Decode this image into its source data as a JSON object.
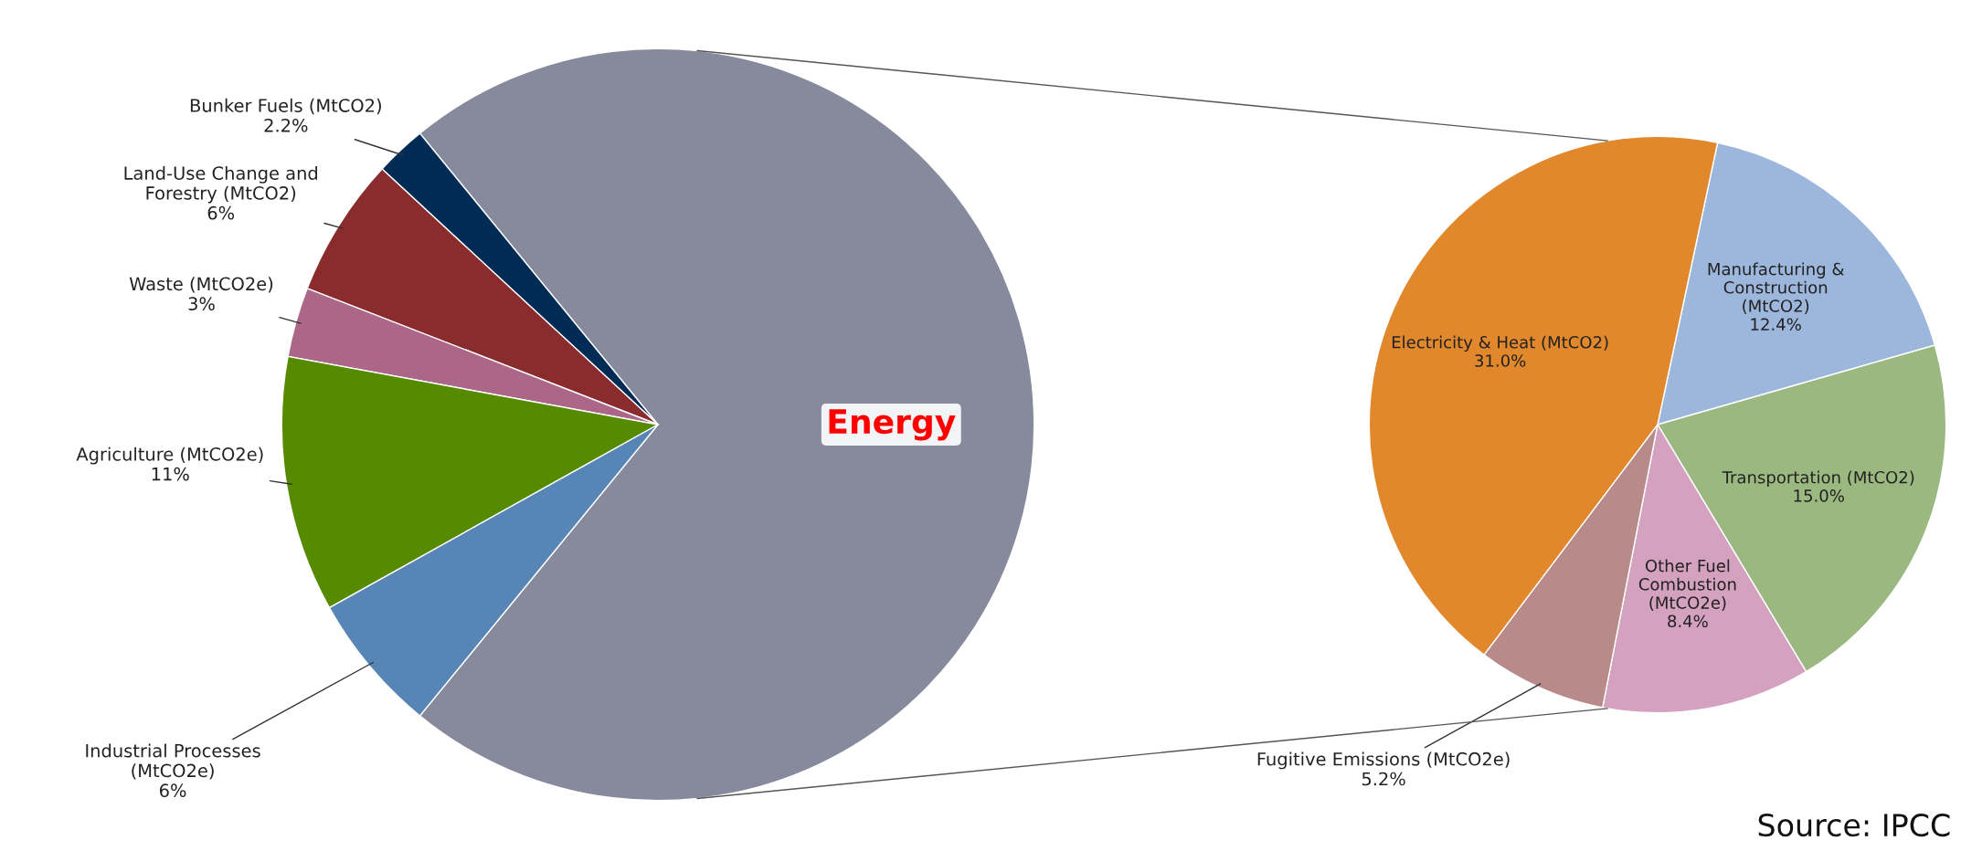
{
  "chart_data": [
    {
      "type": "pie",
      "categories": [
        "Energy",
        "Bunker Fuels (MtCO2)",
        "Land-Use Change and Forestry (MtCO2)",
        "Waste (MtCO2e)",
        "Agriculture (MtCO2e)",
        "Industrial Processes (MtCO2e)"
      ],
      "values": [
        71.8,
        2.2,
        6,
        3,
        11,
        6
      ],
      "value_labels": [
        null,
        "2.2%",
        "6%",
        "3%",
        "11%",
        "6%"
      ],
      "colors": [
        "#868a9c",
        "#002b55",
        "#8a2b2d",
        "#ab6688",
        "#568a00",
        "#5786b6"
      ]
    },
    {
      "type": "pie",
      "categories": [
        "Manufacturing & Construction (MtCO2)",
        "Transportation (MtCO2)",
        "Other Fuel Combustion (MtCO2e)",
        "Fugitive Emissions (MtCO2e)",
        "Electricity & Heat (MtCO2)"
      ],
      "values": [
        12.4,
        15.0,
        8.4,
        5.2,
        31.0
      ],
      "value_labels": [
        "12.4%",
        "15.0%",
        "8.4%",
        "5.2%",
        "31.0%"
      ],
      "colors": [
        "#9db6dc",
        "#9bb880",
        "#d4a1bf",
        "#b88a8a",
        "#e1882d"
      ],
      "annotations": [
        "Source: IPCC"
      ]
    }
  ]
}
